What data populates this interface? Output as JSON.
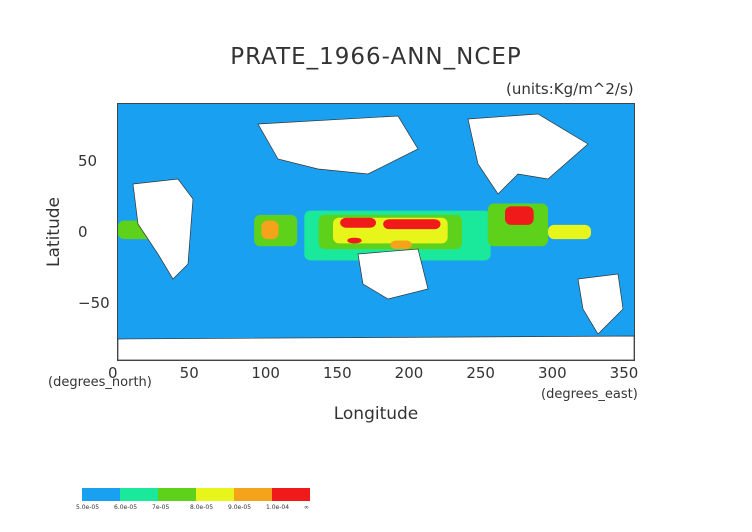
{
  "title": "PRATE_1966-ANN_NCEP",
  "units": "(units:Kg/m^2/s)",
  "chart_data": {
    "type": "heatmap",
    "title": "PRATE_1966-ANN_NCEP",
    "xlabel": "Longitude",
    "ylabel": "Latitude",
    "x_unit": "(degrees_east)",
    "y_unit": "(degrees_north)",
    "xlim": [
      0,
      360
    ],
    "ylim": [
      -90,
      90
    ],
    "xticks": [
      "0",
      "50",
      "100",
      "150",
      "200",
      "250",
      "300",
      "350"
    ],
    "yticks": [
      "50",
      "0",
      "−50"
    ],
    "colorbar": {
      "labels": [
        "5.0e-05",
        "6.0e-05",
        "7e-05",
        "8.0e-05",
        "9.0e-05",
        "1.0e-04",
        "∞"
      ],
      "colors": [
        "#1aa0f0",
        "#1ae89a",
        "#5ed21a",
        "#e8f51a",
        "#f5a31a",
        "#f01a1a"
      ]
    },
    "regions": [
      {
        "lon": [
          0,
          360
        ],
        "lat": [
          -90,
          90
        ],
        "level": 0
      },
      {
        "lon": [
          130,
          260
        ],
        "lat": [
          -20,
          15
        ],
        "level": 1
      },
      {
        "lon": [
          140,
          240
        ],
        "lat": [
          -12,
          12
        ],
        "level": 2
      },
      {
        "lon": [
          150,
          230
        ],
        "lat": [
          -8,
          10
        ],
        "level": 3
      },
      {
        "lon": [
          155,
          180
        ],
        "lat": [
          3,
          10
        ],
        "level": 5
      },
      {
        "lon": [
          185,
          225
        ],
        "lat": [
          2,
          9
        ],
        "level": 5
      },
      {
        "lon": [
          160,
          170
        ],
        "lat": [
          -8,
          -4
        ],
        "level": 5
      },
      {
        "lon": [
          190,
          205
        ],
        "lat": [
          -12,
          -6
        ],
        "level": 4
      },
      {
        "lon": [
          95,
          125
        ],
        "lat": [
          -10,
          12
        ],
        "level": 2
      },
      {
        "lon": [
          100,
          112
        ],
        "lat": [
          -5,
          8
        ],
        "level": 4
      },
      {
        "lon": [
          258,
          300
        ],
        "lat": [
          -10,
          20
        ],
        "level": 2
      },
      {
        "lon": [
          270,
          290
        ],
        "lat": [
          5,
          18
        ],
        "level": 5
      },
      {
        "lon": [
          300,
          330
        ],
        "lat": [
          -5,
          5
        ],
        "level": 3
      },
      {
        "lon": [
          0,
          40
        ],
        "lat": [
          -5,
          8
        ],
        "level": 2
      }
    ]
  }
}
